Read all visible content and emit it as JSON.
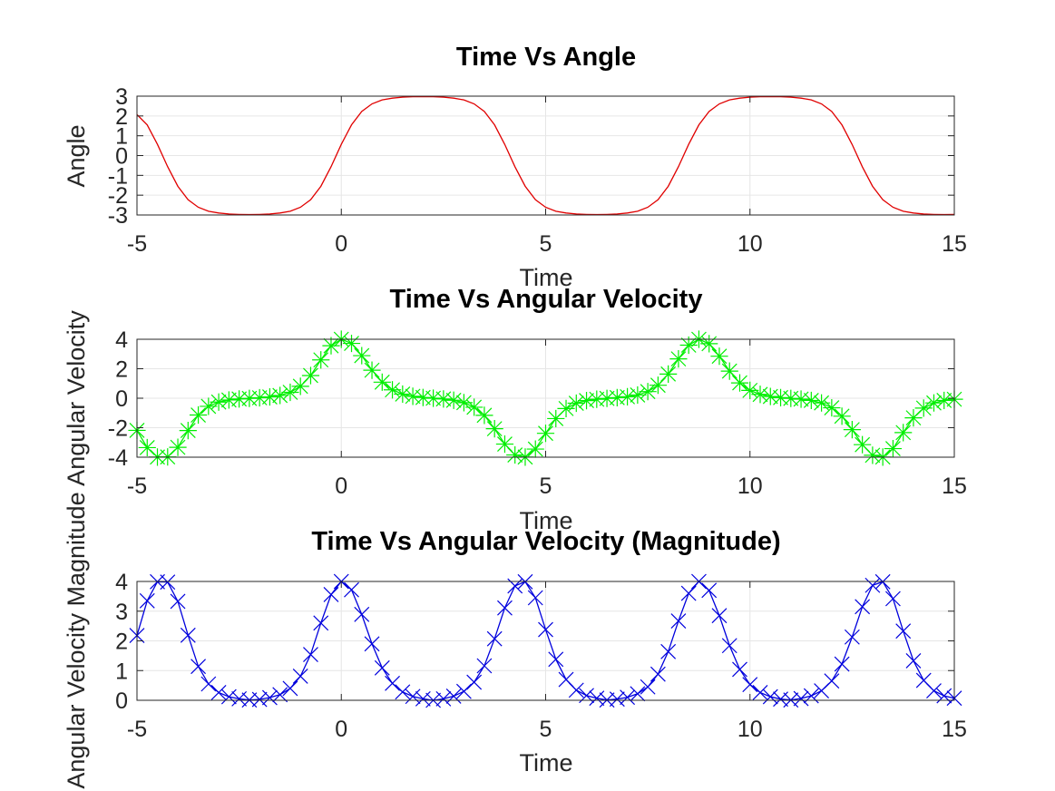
{
  "chart_data": [
    {
      "type": "line",
      "title": "Time Vs Angle",
      "xlabel": "Time",
      "ylabel": "Angle",
      "xlim": [
        -5,
        15
      ],
      "ylim": [
        -3,
        3
      ],
      "xticks": [
        -5,
        0,
        5,
        10,
        15
      ],
      "yticks": [
        -3,
        -2,
        -1,
        0,
        1,
        2,
        3
      ],
      "grid": true,
      "series": [
        {
          "color": "#e00000",
          "marker": "none",
          "x": [
            -5,
            -4.75,
            -4.5,
            -4.25,
            -4,
            -3.75,
            -3.5,
            -3.25,
            -3,
            -2.75,
            -2.5,
            -2.25,
            -2,
            -1.75,
            -1.5,
            -1.25,
            -1,
            -0.75,
            -0.5,
            -0.25,
            0,
            0.25,
            0.5,
            0.75,
            1,
            1.25,
            1.5,
            1.75,
            2,
            2.25,
            2.5,
            2.75,
            3,
            3.25,
            3.5,
            3.75,
            4,
            4.25,
            4.5,
            4.75,
            5,
            5.25,
            5.5,
            5.75,
            6,
            6.25,
            6.5,
            6.75,
            7,
            7.25,
            7.5,
            7.75,
            8,
            8.25,
            8.5,
            8.75,
            9,
            9.25,
            9.5,
            9.75,
            10,
            10.25,
            10.5,
            10.75,
            11,
            11.25,
            11.5,
            11.75,
            12,
            12.25,
            12.5,
            12.75,
            13,
            13.25,
            13.5,
            13.75,
            14,
            14.25,
            14.5,
            14.75,
            15
          ],
          "y": [
            2.07,
            1.55,
            0.57,
            -0.56,
            -1.55,
            -2.23,
            -2.61,
            -2.81,
            -2.9,
            -2.95,
            -2.97,
            -2.98,
            -2.97,
            -2.95,
            -2.9,
            -2.81,
            -2.61,
            -2.23,
            -1.55,
            -0.56,
            0.57,
            1.55,
            2.23,
            2.61,
            2.81,
            2.9,
            2.95,
            2.97,
            2.98,
            2.97,
            2.95,
            2.9,
            2.81,
            2.61,
            2.23,
            1.55,
            0.56,
            -0.57,
            -1.55,
            -2.23,
            -2.61,
            -2.81,
            -2.9,
            -2.95,
            -2.97,
            -2.98,
            -2.97,
            -2.95,
            -2.9,
            -2.81,
            -2.61,
            -2.23,
            -1.55,
            -0.56,
            0.57,
            1.55,
            2.23,
            2.61,
            2.81,
            2.9,
            2.95,
            2.97,
            2.98,
            2.97,
            2.95,
            2.9,
            2.81,
            2.61,
            2.23,
            1.55,
            0.56,
            -0.57,
            -1.55,
            -2.23,
            -2.61,
            -2.81,
            -2.9,
            -2.95,
            -2.97,
            -2.98,
            -2.97
          ]
        }
      ]
    },
    {
      "type": "line",
      "title": "Time Vs Angular Velocity",
      "xlabel": "Time",
      "ylabel": "Angular Velocity",
      "xlim": [
        -5,
        15
      ],
      "ylim": [
        -4,
        4
      ],
      "xticks": [
        -5,
        0,
        5,
        10,
        15
      ],
      "yticks": [
        -4,
        -2,
        0,
        2,
        4
      ],
      "grid": true,
      "series": [
        {
          "color": "#00ee00",
          "marker": "asterisk",
          "x": [
            -5,
            -4.75,
            -4.5,
            -4.25,
            -4,
            -3.75,
            -3.5,
            -3.25,
            -3,
            -2.75,
            -2.5,
            -2.25,
            -2,
            -1.75,
            -1.5,
            -1.25,
            -1,
            -0.75,
            -0.5,
            -0.25,
            0,
            0.25,
            0.5,
            0.75,
            1,
            1.25,
            1.5,
            1.75,
            2,
            2.25,
            2.5,
            2.75,
            3,
            3.25,
            3.5,
            3.75,
            4,
            4.25,
            4.5,
            4.75,
            5,
            5.25,
            5.5,
            5.75,
            6,
            6.25,
            6.5,
            6.75,
            7,
            7.25,
            7.5,
            7.75,
            8,
            8.25,
            8.5,
            8.75,
            9,
            9.25,
            9.5,
            9.75,
            10,
            10.25,
            10.5,
            10.75,
            11,
            11.25,
            11.5,
            11.75,
            12,
            12.25,
            12.5,
            12.75,
            13,
            13.25,
            13.5,
            13.75,
            14,
            14.25,
            14.5,
            14.75,
            15
          ],
          "y": [
            -2.18,
            -3.35,
            -3.99,
            -3.98,
            -3.33,
            -2.19,
            -1.14,
            -0.55,
            -0.26,
            -0.12,
            -0.05,
            -0.01,
            0.03,
            0.09,
            0.19,
            0.4,
            0.81,
            1.54,
            2.6,
            3.56,
            4.0,
            3.72,
            2.89,
            1.9,
            1.09,
            0.57,
            0.28,
            0.13,
            0.05,
            0.0,
            -0.05,
            -0.14,
            -0.3,
            -0.61,
            -1.16,
            -2.07,
            -3.11,
            -3.85,
            -3.99,
            -3.45,
            -2.38,
            -1.38,
            -0.7,
            -0.34,
            -0.16,
            -0.07,
            -0.01,
            0.04,
            0.1,
            0.22,
            0.45,
            0.88,
            1.64,
            2.67,
            3.6,
            4.0,
            3.7,
            2.85,
            1.84,
            1.04,
            0.53,
            0.26,
            0.12,
            0.04,
            -0.01,
            -0.06,
            -0.15,
            -0.32,
            -0.65,
            -1.22,
            -2.13,
            -3.15,
            -3.87,
            -3.99,
            -3.42,
            -2.33,
            -1.33,
            -0.67,
            -0.32,
            -0.15,
            -0.07
          ]
        }
      ]
    },
    {
      "type": "line",
      "title": "Time Vs Angular Velocity (Magnitude)",
      "xlabel": "Time",
      "ylabel": "Angular Velocity Magnitude",
      "xlim": [
        -5,
        15
      ],
      "ylim": [
        0,
        4
      ],
      "xticks": [
        -5,
        0,
        5,
        10,
        15
      ],
      "yticks": [
        0,
        1,
        2,
        3,
        4
      ],
      "grid": true,
      "series": [
        {
          "color": "#0000dd",
          "marker": "x",
          "x": [
            -5,
            -4.75,
            -4.5,
            -4.25,
            -4,
            -3.75,
            -3.5,
            -3.25,
            -3,
            -2.75,
            -2.5,
            -2.25,
            -2,
            -1.75,
            -1.5,
            -1.25,
            -1,
            -0.75,
            -0.5,
            -0.25,
            0,
            0.25,
            0.5,
            0.75,
            1,
            1.25,
            1.5,
            1.75,
            2,
            2.25,
            2.5,
            2.75,
            3,
            3.25,
            3.5,
            3.75,
            4,
            4.25,
            4.5,
            4.75,
            5,
            5.25,
            5.5,
            5.75,
            6,
            6.25,
            6.5,
            6.75,
            7,
            7.25,
            7.5,
            7.75,
            8,
            8.25,
            8.5,
            8.75,
            9,
            9.25,
            9.5,
            9.75,
            10,
            10.25,
            10.5,
            10.75,
            11,
            11.25,
            11.5,
            11.75,
            12,
            12.25,
            12.5,
            12.75,
            13,
            13.25,
            13.5,
            13.75,
            14,
            14.25,
            14.5,
            14.75,
            15
          ],
          "y": [
            2.18,
            3.35,
            3.99,
            3.98,
            3.33,
            2.19,
            1.14,
            0.55,
            0.26,
            0.12,
            0.05,
            0.01,
            0.03,
            0.09,
            0.19,
            0.4,
            0.81,
            1.54,
            2.6,
            3.56,
            4.0,
            3.72,
            2.89,
            1.9,
            1.09,
            0.57,
            0.28,
            0.13,
            0.05,
            0.0,
            0.05,
            0.14,
            0.3,
            0.61,
            1.16,
            2.07,
            3.11,
            3.85,
            3.99,
            3.45,
            2.38,
            1.38,
            0.7,
            0.34,
            0.16,
            0.07,
            0.01,
            0.04,
            0.1,
            0.22,
            0.45,
            0.88,
            1.64,
            2.67,
            3.6,
            4.0,
            3.7,
            2.85,
            1.84,
            1.04,
            0.53,
            0.26,
            0.12,
            0.04,
            0.01,
            0.06,
            0.15,
            0.32,
            0.65,
            1.22,
            2.13,
            3.15,
            3.87,
            3.99,
            3.42,
            2.33,
            1.33,
            0.67,
            0.32,
            0.15,
            0.07
          ]
        }
      ]
    }
  ]
}
